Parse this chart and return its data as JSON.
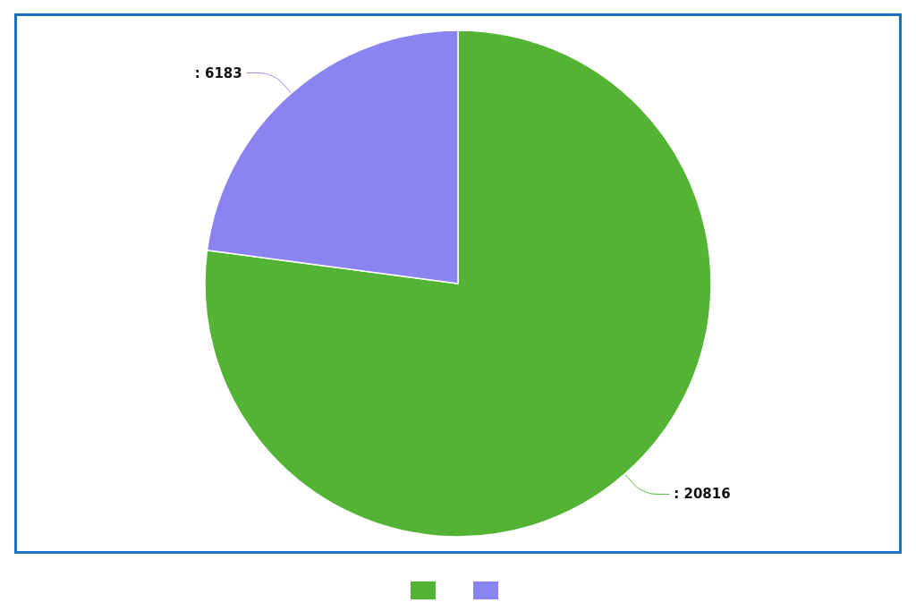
{
  "chart_data": {
    "type": "pie",
    "categories": [
      null,
      null
    ],
    "values": [
      20816,
      6183
    ],
    "colors": [
      "#52b334",
      "#8b84f0"
    ],
    "value_labels": [
      ": 20816",
      ": 6183"
    ]
  }
}
